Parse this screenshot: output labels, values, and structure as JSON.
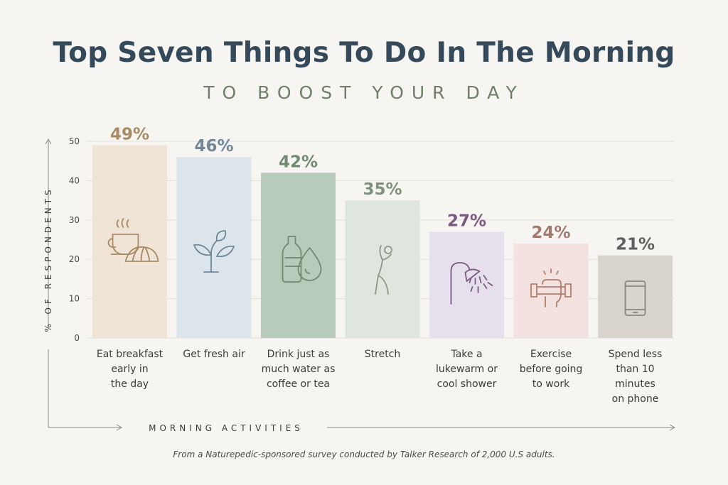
{
  "title": "Top Seven Things To Do In The Morning",
  "subtitle": "TO BOOST YOUR DAY",
  "source": "From a Naturepedic-sponsored survey conducted by Talker Research of 2,000 U.S adults.",
  "chart_data": {
    "type": "bar",
    "ylabel": "% OF RESPONDENTS",
    "xlabel": "MORNING ACTIVITIES",
    "ylim": [
      0,
      50
    ],
    "yticks": [
      0,
      10,
      20,
      30,
      40,
      50
    ],
    "grid": true,
    "categories": [
      "Eat breakfast early in the day",
      "Get fresh air",
      "Drink just as much water as coffee or tea",
      "Stretch",
      "Take a lukewarm or cool shower",
      "Exercise before going to work",
      "Spend less than 10 minutes on phone"
    ],
    "category_lines": [
      [
        "Eat breakfast",
        "early in",
        "the day"
      ],
      [
        "Get fresh air"
      ],
      [
        "Drink just as",
        "much water as",
        "coffee or tea"
      ],
      [
        "Stretch"
      ],
      [
        "Take a",
        "lukewarm or",
        "cool shower"
      ],
      [
        "Exercise",
        "before going",
        "to work"
      ],
      [
        "Spend less",
        "than 10",
        "minutes",
        "on phone"
      ]
    ],
    "values": [
      49,
      46,
      42,
      35,
      27,
      24,
      21
    ],
    "value_labels": [
      "49%",
      "46%",
      "42%",
      "35%",
      "27%",
      "24%",
      "21%"
    ],
    "bar_colors": [
      "#efe4d5",
      "#dde5ec",
      "#b7cbba",
      "#dfe6dd",
      "#e6e0ec",
      "#f3e2df",
      "#d9d4cc"
    ],
    "label_colors": [
      "#a88a66",
      "#6f8798",
      "#6e8a70",
      "#7c927a",
      "#7a5a82",
      "#a57a6e",
      "#5f5f5f"
    ],
    "icon_colors": [
      "#a88a66",
      "#6f8798",
      "#6e8a70",
      "#8a9a86",
      "#7a5a82",
      "#b08070",
      "#8a8580"
    ],
    "icons": [
      "coffee-croissant-icon",
      "sprout-icon",
      "water-bottle-icon",
      "stretching-person-icon",
      "shower-icon",
      "fist-dumbbell-icon",
      "smartphone-icon"
    ]
  }
}
